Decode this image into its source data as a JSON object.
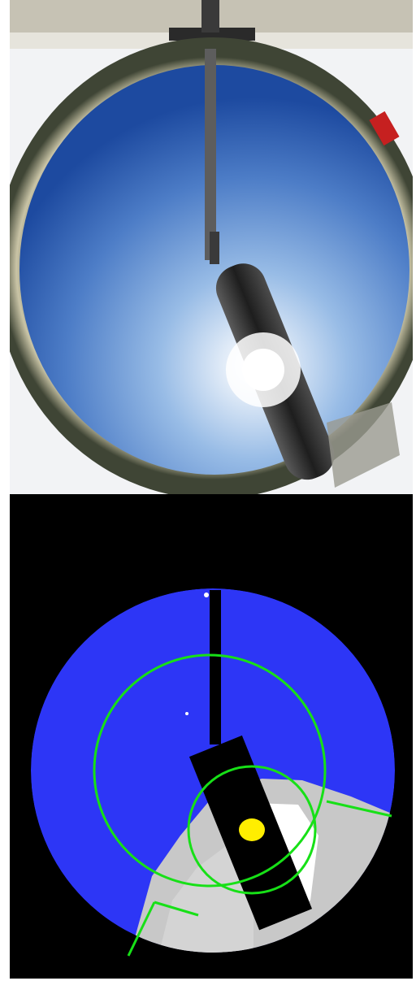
{
  "panels": [
    {
      "id": "sky-photo",
      "description_visible": false,
      "colors": {
        "sky_center": "#b9d3ef",
        "sky_edge": "#1f4fa6",
        "horizon_ring": "#6a6a52",
        "shadow_band": "#2c2c2c",
        "sun_glare": "#ffffff",
        "structure": "#8c8c86"
      }
    },
    {
      "id": "cloud-mask",
      "colors": {
        "background": "#000000",
        "clear_sky": "#2d36f6",
        "cloud": "#c8c8c8",
        "thin_cloud": "#ffffff",
        "circumsolar_ring": "#17e017",
        "sun_marker": "#ffee00",
        "shadow_band": "#000000"
      }
    }
  ]
}
